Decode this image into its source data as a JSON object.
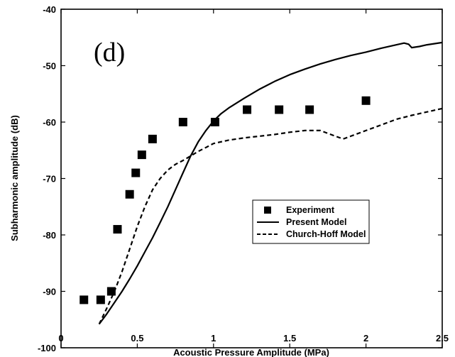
{
  "chart_data": {
    "type": "scatter",
    "title": "",
    "panel_label": "(d)",
    "xlabel": "Acoustic Pressure Amplitude (MPa)",
    "ylabel": "Subharmonic amplitude (dB)",
    "xlim": [
      0,
      2.5
    ],
    "ylim": [
      -100,
      -40
    ],
    "xticks": [
      0,
      0.5,
      1,
      1.5,
      2,
      2.5
    ],
    "xtick_labels": [
      "0",
      "0.5",
      "1",
      "1.5",
      "2",
      "2.5"
    ],
    "yticks": [
      -100,
      -90,
      -80,
      -70,
      -60,
      -50,
      -40
    ],
    "ytick_labels": [
      "-100",
      "-90",
      "-80",
      "-70",
      "-60",
      "-50",
      "-40"
    ],
    "grid": false,
    "legend_position": "center-right",
    "series": [
      {
        "name": "Experiment",
        "style": "marker-square",
        "color": "#000000",
        "x": [
          0.15,
          0.26,
          0.33,
          0.37,
          0.45,
          0.49,
          0.53,
          0.6,
          0.8,
          1.01,
          1.22,
          1.43,
          1.63,
          2.0
        ],
        "y": [
          -91.5,
          -91.5,
          -90,
          -79,
          -72.8,
          -69,
          -65.8,
          -63,
          -60,
          -60,
          -57.8,
          -57.8,
          -57.8,
          -56.2
        ]
      },
      {
        "name": "Present Model",
        "style": "solid",
        "color": "#000000",
        "x": [
          0.25,
          0.3,
          0.35,
          0.4,
          0.45,
          0.5,
          0.55,
          0.6,
          0.65,
          0.7,
          0.75,
          0.8,
          0.85,
          0.9,
          0.95,
          1.0,
          1.05,
          1.1,
          1.2,
          1.3,
          1.4,
          1.5,
          1.6,
          1.7,
          1.8,
          1.9,
          2.0,
          2.1,
          2.2,
          2.25,
          2.28,
          2.3,
          2.35,
          2.4,
          2.45,
          2.5
        ],
        "y": [
          -95.8,
          -94.0,
          -92.0,
          -90.0,
          -87.8,
          -85.5,
          -83.0,
          -80.5,
          -77.8,
          -75.0,
          -72.0,
          -69.0,
          -66.0,
          -63.5,
          -61.5,
          -59.8,
          -58.5,
          -57.5,
          -55.8,
          -54.2,
          -52.8,
          -51.6,
          -50.6,
          -49.7,
          -48.9,
          -48.2,
          -47.6,
          -46.9,
          -46.3,
          -46.0,
          -46.2,
          -46.8,
          -46.6,
          -46.3,
          -46.1,
          -45.9
        ]
      },
      {
        "name": "Church-Hoff Model",
        "style": "dashed",
        "color": "#000000",
        "x": [
          0.25,
          0.3,
          0.35,
          0.4,
          0.45,
          0.5,
          0.55,
          0.6,
          0.65,
          0.7,
          0.75,
          0.8,
          0.85,
          0.9,
          0.95,
          1.0,
          1.1,
          1.2,
          1.3,
          1.4,
          1.5,
          1.6,
          1.7,
          1.75,
          1.8,
          1.85,
          1.9,
          2.0,
          2.1,
          2.2,
          2.3,
          2.4,
          2.5
        ],
        "y": [
          -95.8,
          -93.0,
          -90.0,
          -86.5,
          -82.5,
          -78.5,
          -75.0,
          -72.0,
          -70.0,
          -68.5,
          -67.5,
          -66.8,
          -66.0,
          -65.2,
          -64.5,
          -63.8,
          -63.2,
          -62.8,
          -62.5,
          -62.2,
          -61.8,
          -61.5,
          -61.5,
          -62.0,
          -62.5,
          -63.0,
          -62.5,
          -61.5,
          -60.5,
          -59.5,
          -58.8,
          -58.2,
          -57.6
        ]
      }
    ]
  }
}
